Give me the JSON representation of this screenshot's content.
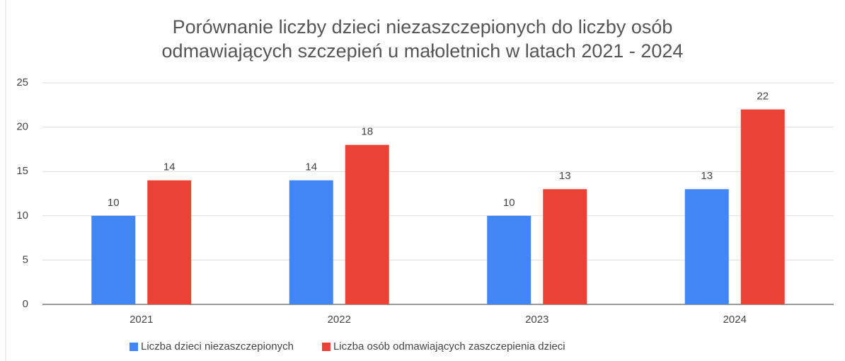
{
  "chart_data": {
    "type": "bar",
    "title": [
      "Porównanie liczby dzieci niezaszczepionych do liczby osób",
      "odmawiających szczepień u małoletnich w latach 2021 - 2024"
    ],
    "categories": [
      "2021",
      "2022",
      "2023",
      "2024"
    ],
    "series": [
      {
        "name": "Liczba dzieci niezaszczepionych",
        "color": "#4285f4",
        "values": [
          10,
          14,
          10,
          13
        ]
      },
      {
        "name": "Liczba osób odmawiających zaszczepienia dzieci",
        "color": "#ea4335",
        "values": [
          14,
          18,
          13,
          22
        ]
      }
    ],
    "ylim": [
      0,
      25
    ],
    "yticks": [
      0,
      5,
      10,
      15,
      20,
      25
    ],
    "grid": true,
    "legend": "bottom"
  }
}
